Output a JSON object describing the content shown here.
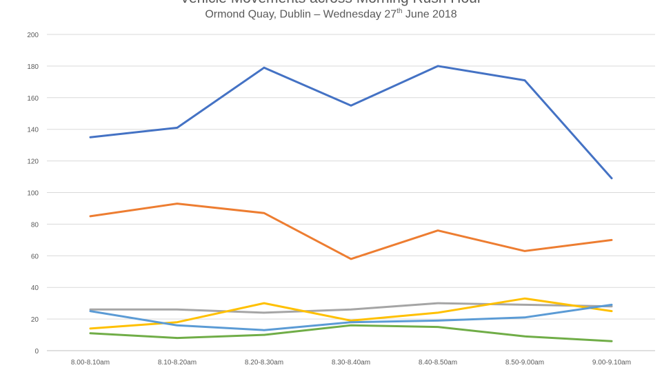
{
  "chart_data": {
    "type": "line",
    "title": "Vehicle Movements across Morning Rush Hour",
    "subtitle": {
      "prefix": "Ormond Quay, Dublin – Wednesday 27",
      "sup": "th",
      "suffix": " June 2018"
    },
    "xlabel": "",
    "ylabel": "",
    "ylim": [
      0,
      200
    ],
    "yticks": [
      "0",
      "20",
      "40",
      "60",
      "80",
      "100",
      "120",
      "140",
      "160",
      "180",
      "200"
    ],
    "grid": true,
    "categories": [
      "8.00-8.10am",
      "8.10-8.20am",
      "8.20-8.30am",
      "8.30-8.40am",
      "8.40-8.50am",
      "8.50-9.00am",
      "9.00-9.10am"
    ],
    "series": [
      {
        "color": "#4472C4",
        "values": [
          135,
          141,
          179,
          155,
          180,
          171,
          109
        ]
      },
      {
        "color": "#ED7D31",
        "values": [
          85,
          93,
          87,
          58,
          76,
          63,
          70
        ]
      },
      {
        "color": "#A5A5A5",
        "values": [
          26,
          26,
          24,
          26,
          30,
          29,
          28
        ]
      },
      {
        "color": "#FFC000",
        "values": [
          14,
          18,
          30,
          19,
          24,
          33,
          25
        ]
      },
      {
        "color": "#5B9BD5",
        "values": [
          25,
          16,
          13,
          18,
          19,
          21,
          29
        ]
      },
      {
        "color": "#70AD47",
        "values": [
          11,
          8,
          10,
          16,
          15,
          9,
          6
        ]
      }
    ]
  }
}
